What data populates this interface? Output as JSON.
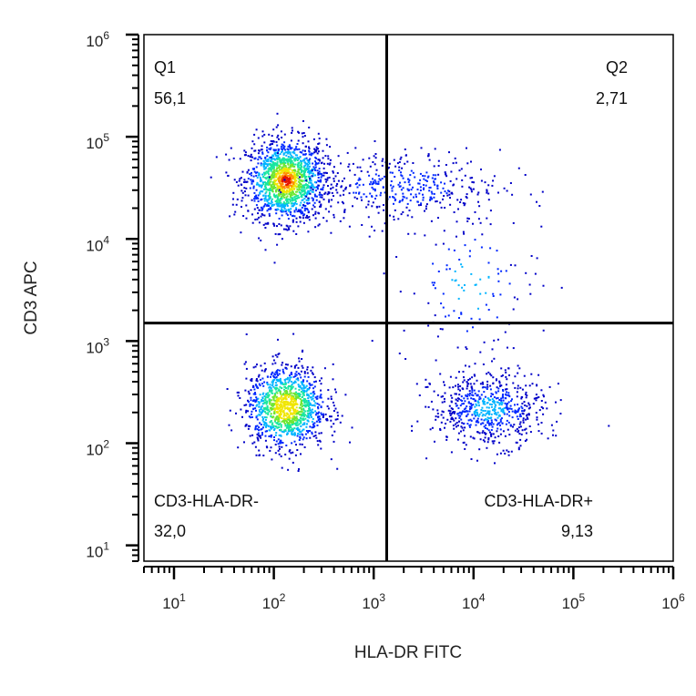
{
  "chart_data": {
    "type": "scatter",
    "subtype": "flow-cytometry-density-dot-plot",
    "xlabel": "HLA-DR FITC",
    "ylabel": "CD3 APC",
    "x_scale": "log",
    "y_scale": "log",
    "xlim": [
      5,
      1000000
    ],
    "ylim": [
      7,
      1000000
    ],
    "x_ticks": [
      {
        "value": 10,
        "base": "10",
        "exp": "1"
      },
      {
        "value": 100,
        "base": "10",
        "exp": "2"
      },
      {
        "value": 1000,
        "base": "10",
        "exp": "3"
      },
      {
        "value": 10000,
        "base": "10",
        "exp": "4"
      },
      {
        "value": 100000,
        "base": "10",
        "exp": "5"
      },
      {
        "value": 1000000,
        "base": "10",
        "exp": "6"
      }
    ],
    "y_ticks": [
      {
        "value": 10,
        "base": "10",
        "exp": "1"
      },
      {
        "value": 100,
        "base": "10",
        "exp": "2"
      },
      {
        "value": 1000,
        "base": "10",
        "exp": "3"
      },
      {
        "value": 10000,
        "base": "10",
        "exp": "4"
      },
      {
        "value": 100000,
        "base": "10",
        "exp": "5"
      },
      {
        "value": 1000000,
        "base": "10",
        "exp": "6"
      }
    ],
    "gates": {
      "x": 1350,
      "y": 1500
    },
    "quadrants": [
      {
        "name": "Q1",
        "value": "56,1",
        "position": "top-left"
      },
      {
        "name": "Q2",
        "value": "2,71",
        "position": "top-right"
      },
      {
        "name": "CD3-HLA-DR-",
        "value": "32,0",
        "position": "bottom-left"
      },
      {
        "name": "CD3-HLA-DR+",
        "value": "9,13",
        "position": "bottom-right"
      }
    ],
    "populations": [
      {
        "region": "Q1",
        "center_x": 130,
        "center_y": 38000,
        "spread_log_x": 0.2,
        "spread_log_y": 0.2,
        "count": 1500
      },
      {
        "region": "Q1-tail",
        "center_x": 1800,
        "center_y": 33000,
        "spread_log_x": 0.5,
        "spread_log_y": 0.18,
        "count": 420
      },
      {
        "region": "Q2",
        "center_x": 9000,
        "center_y": 3500,
        "spread_log_x": 0.35,
        "spread_log_y": 0.4,
        "count": 130
      },
      {
        "region": "CD3-HLA-DR-",
        "center_x": 130,
        "center_y": 230,
        "spread_log_x": 0.2,
        "spread_log_y": 0.2,
        "count": 1200
      },
      {
        "region": "CD3-HLA-DR+",
        "center_x": 14000,
        "center_y": 220,
        "spread_log_x": 0.28,
        "spread_log_y": 0.18,
        "count": 650
      }
    ],
    "density_colors": [
      "#0000c8",
      "#0028ff",
      "#00b4ff",
      "#19e6a0",
      "#6ee632",
      "#f0e600",
      "#ff8c00",
      "#e61400"
    ],
    "gate_color": "#000000"
  }
}
